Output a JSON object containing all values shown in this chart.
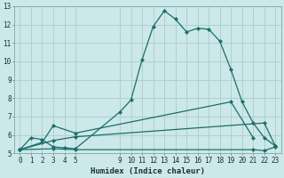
{
  "xlabel": "Humidex (Indice chaleur)",
  "bg_color": "#cce8e8",
  "grid_color": "#b0d0d0",
  "line_color": "#1a6e6a",
  "xlim": [
    -0.5,
    23.5
  ],
  "ylim": [
    5,
    13
  ],
  "xticks": [
    0,
    1,
    2,
    3,
    4,
    5,
    9,
    10,
    11,
    12,
    13,
    14,
    15,
    16,
    17,
    18,
    19,
    20,
    21,
    22,
    23
  ],
  "yticks": [
    5,
    6,
    7,
    8,
    9,
    10,
    11,
    12,
    13
  ],
  "line1_x": [
    0,
    1,
    2,
    3,
    4,
    5,
    9,
    10,
    11,
    12,
    13,
    14,
    15,
    16,
    17,
    18,
    19,
    20,
    21,
    22,
    23
  ],
  "line1_y": [
    5.2,
    5.85,
    5.75,
    5.35,
    5.3,
    5.25,
    7.25,
    7.9,
    10.1,
    11.9,
    12.75,
    12.3,
    11.6,
    11.8,
    11.75,
    11.1,
    9.55,
    7.8,
    6.65,
    5.85,
    5.4
  ],
  "line2_x": [
    0,
    2,
    3,
    5,
    19,
    21
  ],
  "line2_y": [
    5.2,
    5.6,
    6.5,
    6.1,
    7.8,
    5.85
  ],
  "line3_x": [
    0,
    3,
    5,
    22,
    23
  ],
  "line3_y": [
    5.2,
    5.7,
    5.9,
    6.65,
    5.4
  ],
  "line4_x": [
    0,
    3,
    5,
    21,
    22,
    23
  ],
  "line4_y": [
    5.2,
    5.25,
    5.2,
    5.2,
    5.15,
    5.35
  ]
}
